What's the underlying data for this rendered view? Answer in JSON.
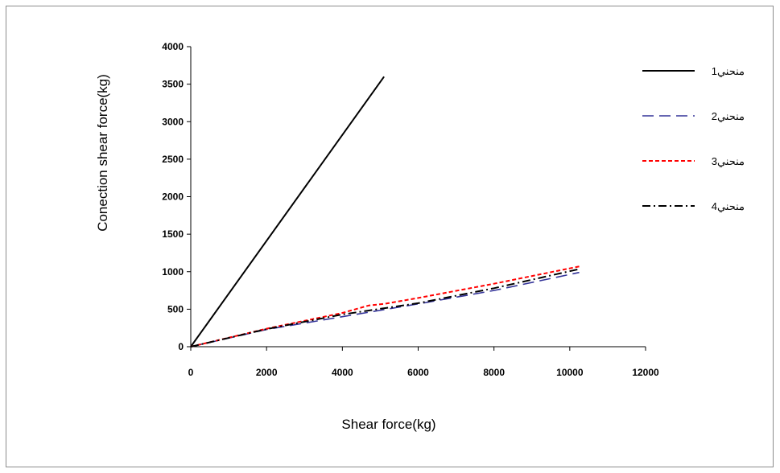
{
  "chart_data": {
    "type": "line",
    "xlabel": "Shear force(kg)",
    "ylabel": "Conection shear force(kg)",
    "xlim": [
      0,
      12000
    ],
    "ylim": [
      0,
      4000
    ],
    "xticks": [
      "0",
      "2000",
      "4000",
      "6000",
      "8000",
      "10000",
      "12000"
    ],
    "yticks": [
      "0",
      "500",
      "1000",
      "1500",
      "2000",
      "2500",
      "3000",
      "3500",
      "4000"
    ],
    "grid": false,
    "legend_position": "right",
    "series": [
      {
        "name": "منحني1",
        "color": "#000000",
        "dash": "solid",
        "points": [
          [
            0,
            0
          ],
          [
            5100,
            3600
          ]
        ]
      },
      {
        "name": "منحني2",
        "color": "#333399",
        "dash": "long-dash",
        "points": [
          [
            0,
            0
          ],
          [
            2000,
            230
          ],
          [
            4000,
            400
          ],
          [
            6000,
            570
          ],
          [
            8000,
            750
          ],
          [
            10250,
            990
          ]
        ]
      },
      {
        "name": "منحني3",
        "color": "#ff0000",
        "dash": "short-dash",
        "points": [
          [
            0,
            0
          ],
          [
            2000,
            240
          ],
          [
            4000,
            450
          ],
          [
            4700,
            550
          ],
          [
            5100,
            570
          ],
          [
            6000,
            650
          ],
          [
            8000,
            840
          ],
          [
            10250,
            1070
          ]
        ]
      },
      {
        "name": "منحني4",
        "color": "#000000",
        "dash": "dash-dot",
        "points": [
          [
            0,
            0
          ],
          [
            2000,
            235
          ],
          [
            4000,
            430
          ],
          [
            6000,
            580
          ],
          [
            8000,
            780
          ],
          [
            10200,
            1030
          ]
        ]
      }
    ]
  }
}
